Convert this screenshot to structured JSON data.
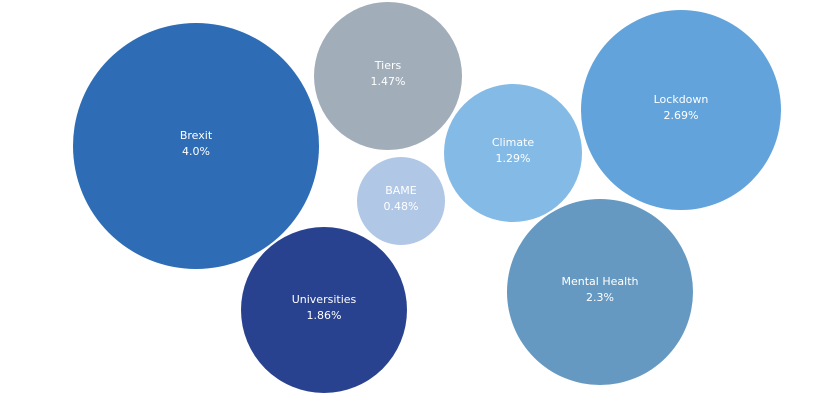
{
  "chart_data": {
    "type": "bubble",
    "title": "",
    "unit": "%",
    "legend": "none",
    "series": [
      {
        "label": "Brexit",
        "value_text": "4.0%",
        "value": 4.0,
        "color": "#2e6db5"
      },
      {
        "label": "Tiers",
        "value_text": "1.47%",
        "value": 1.47,
        "color": "#a2adba"
      },
      {
        "label": "Lockdown",
        "value_text": "2.69%",
        "value": 2.69,
        "color": "#62a3db"
      },
      {
        "label": "Climate",
        "value_text": "1.29%",
        "value": 1.29,
        "color": "#83bae6"
      },
      {
        "label": "BAME",
        "value_text": "0.48%",
        "value": 0.48,
        "color": "#b0c7e6"
      },
      {
        "label": "Universities",
        "value_text": "1.86%",
        "value": 1.86,
        "color": "#28428f"
      },
      {
        "label": "Mental Health",
        "value_text": "2.3%",
        "value": 2.3,
        "color": "#6599c1"
      }
    ]
  }
}
